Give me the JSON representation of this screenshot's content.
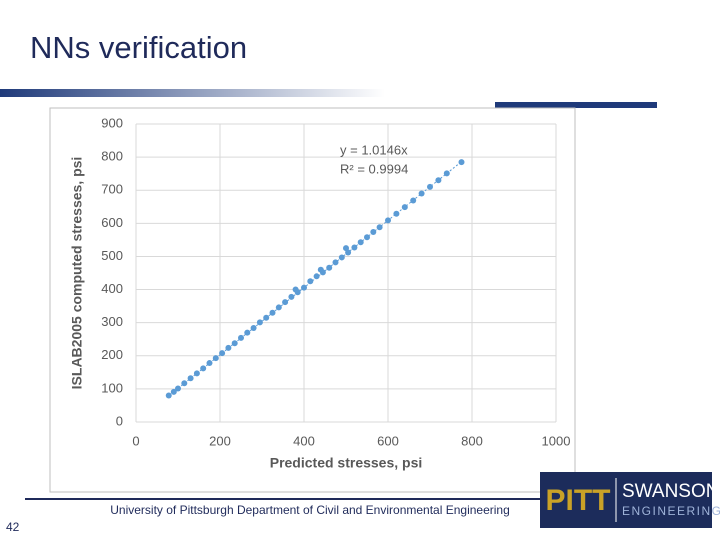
{
  "slide": {
    "title": "NNs verification",
    "footer": "University of Pittsburgh Department of Civil and Environmental Engineering",
    "page_number": "42",
    "logo": {
      "left": "PITT",
      "top": "SWANSON",
      "bottom": "ENGINEERING"
    }
  },
  "chart_data": {
    "type": "scatter",
    "x_label": "Predicted stresses, psi",
    "y_label": "ISLAB2005 computed stresses, psi",
    "x": [
      78,
      90,
      100,
      115,
      130,
      145,
      160,
      175,
      190,
      205,
      220,
      235,
      250,
      265,
      280,
      295,
      310,
      325,
      340,
      355,
      370,
      380,
      385,
      400,
      415,
      430,
      440,
      445,
      460,
      475,
      490,
      500,
      505,
      520,
      535,
      550,
      565,
      580,
      600,
      620,
      640,
      660,
      680,
      700,
      720,
      740,
      775
    ],
    "values": [
      80,
      91,
      101,
      117,
      132,
      147,
      162,
      178,
      193,
      208,
      224,
      238,
      254,
      270,
      284,
      301,
      315,
      330,
      346,
      362,
      378,
      400,
      392,
      406,
      425,
      440,
      460,
      452,
      466,
      482,
      497,
      525,
      512,
      527,
      543,
      558,
      574,
      588,
      609,
      629,
      649,
      669,
      690,
      710,
      730,
      751,
      785
    ],
    "color": "#5b9bd5",
    "xlim": [
      0,
      1000
    ],
    "xticks": [
      0,
      200,
      400,
      600,
      800,
      1000
    ],
    "ylim": [
      0,
      900
    ],
    "yticks": [
      0,
      100,
      200,
      300,
      400,
      500,
      600,
      700,
      800,
      900
    ],
    "grid": true,
    "trendline": {
      "slope": 1.0146,
      "label": "y = 1.0146x",
      "r2_label": "R² = 0.9994"
    }
  }
}
